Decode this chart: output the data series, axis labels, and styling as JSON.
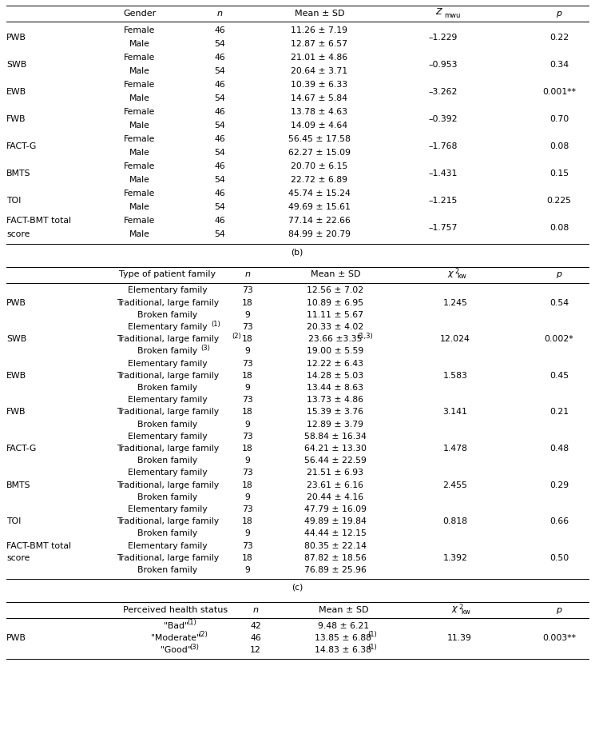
{
  "table_a_rows": [
    [
      "PWB",
      "Female",
      "46",
      "11.26 ± 7.19",
      "–1.229",
      "0.22"
    ],
    [
      "",
      "Male",
      "54",
      "12.87 ± 6.57",
      "",
      ""
    ],
    [
      "SWB",
      "Female",
      "46",
      "21.01 ± 4.86",
      "–0.953",
      "0.34"
    ],
    [
      "",
      "Male",
      "54",
      "20.64 ± 3.71",
      "",
      ""
    ],
    [
      "EWB",
      "Female",
      "46",
      "10.39 ± 6.33",
      "–3.262",
      "0.001**"
    ],
    [
      "",
      "Male",
      "54",
      "14.67 ± 5.84",
      "",
      ""
    ],
    [
      "FWB",
      "Female",
      "46",
      "13.78 ± 4.63",
      "–0.392",
      "0.70"
    ],
    [
      "",
      "Male",
      "54",
      "14.09 ± 4.64",
      "",
      ""
    ],
    [
      "FACT-G",
      "Female",
      "46",
      "56.45 ± 17.58",
      "–1.768",
      "0.08"
    ],
    [
      "",
      "Male",
      "54",
      "62.27 ± 15.09",
      "",
      ""
    ],
    [
      "BMTS",
      "Female",
      "46",
      "20.70 ± 6.15",
      "–1.431",
      "0.15"
    ],
    [
      "",
      "Male",
      "54",
      "22.72 ± 6.89",
      "",
      ""
    ],
    [
      "TOI",
      "Female",
      "46",
      "45.74 ± 15.24",
      "–1.215",
      "0.225"
    ],
    [
      "",
      "Male",
      "54",
      "49.69 ± 15.61",
      "",
      ""
    ],
    [
      "FACT-BMT total",
      "Female",
      "46",
      "77.14 ± 22.66",
      "–1.757",
      "0.08"
    ],
    [
      "score",
      "Male",
      "54",
      "84.99 ± 20.79",
      "",
      ""
    ]
  ],
  "table_b_rows": [
    [
      "PWB",
      "Elementary family",
      "73",
      "12.56 ± 7.02",
      "",
      ""
    ],
    [
      "",
      "Traditional, large family",
      "18",
      "10.89 ± 6.95",
      "1.245",
      "0.54"
    ],
    [
      "",
      "Broken family",
      "9",
      "11.11 ± 5.67",
      "",
      ""
    ],
    [
      "SWB",
      "Elementary family(1)",
      "73",
      "20.33 ± 4.02",
      "",
      ""
    ],
    [
      "",
      "Traditional, large family(2)",
      "18",
      "23.66 ±3.35(1,3)",
      "12.024",
      "0.002*"
    ],
    [
      "",
      "Broken family(3)",
      "9",
      "19.00 ± 5.59",
      "",
      ""
    ],
    [
      "EWB",
      "Elementary family",
      "73",
      "12.22 ± 6.43",
      "",
      ""
    ],
    [
      "",
      "Traditional, large family",
      "18",
      "14.28 ± 5.03",
      "1.583",
      "0.45"
    ],
    [
      "",
      "Broken family",
      "9",
      "13.44 ± 8.63",
      "",
      ""
    ],
    [
      "FWB",
      "Elementary family",
      "73",
      "13.73 ± 4.86",
      "",
      ""
    ],
    [
      "",
      "Traditional, large family",
      "18",
      "15.39 ± 3.76",
      "3.141",
      "0.21"
    ],
    [
      "",
      "Broken family",
      "9",
      "12.89 ± 3.79",
      "",
      ""
    ],
    [
      "FACT-G",
      "Elementary family",
      "73",
      "58.84 ± 16.34",
      "",
      ""
    ],
    [
      "",
      "Traditional, large family",
      "18",
      "64.21 ± 13.30",
      "1.478",
      "0.48"
    ],
    [
      "",
      "Broken family",
      "9",
      "56.44 ± 22.59",
      "",
      ""
    ],
    [
      "BMTS",
      "Elementary family",
      "73",
      "21.51 ± 6.93",
      "",
      ""
    ],
    [
      "",
      "Traditional, large family",
      "18",
      "23.61 ± 6.16",
      "2.455",
      "0.29"
    ],
    [
      "",
      "Broken family",
      "9",
      "20.44 ± 4.16",
      "",
      ""
    ],
    [
      "TOI",
      "Elementary family",
      "73",
      "47.79 ± 16.09",
      "",
      ""
    ],
    [
      "",
      "Traditional, large family",
      "18",
      "49.89 ± 19.84",
      "0.818",
      "0.66"
    ],
    [
      "",
      "Broken family",
      "9",
      "44.44 ± 12.15",
      "",
      ""
    ],
    [
      "FACT-BMT total",
      "Elementary family",
      "73",
      "80.35 ± 22.14",
      "",
      ""
    ],
    [
      "score",
      "Traditional, large family",
      "18",
      "87.82 ± 18.56",
      "1.392",
      "0.50"
    ],
    [
      "",
      "Broken family",
      "9",
      "76.89 ± 25.96",
      "",
      ""
    ]
  ],
  "table_c_rows": [
    [
      "PWB",
      "\"Bad\"(1)",
      "42",
      "9.48 ± 6.21",
      "",
      ""
    ],
    [
      "",
      "\"Moderate\"(2)",
      "46",
      "13.85 ± 6.88(1)",
      "11.39",
      "0.003**"
    ],
    [
      "",
      "\"Good\"(3)",
      "12",
      "14.83 ± 6.38(1)",
      "",
      ""
    ]
  ],
  "fs_header": 8.0,
  "fs_cell": 7.8,
  "fs_label": 7.8,
  "fs_super": 6.0
}
